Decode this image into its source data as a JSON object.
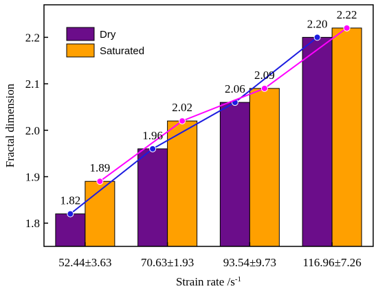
{
  "chart_data": {
    "type": "bar",
    "xlabel": "Strain rate /s",
    "xlabel_sup": "-1",
    "ylabel": "Fractal dimension",
    "categories": [
      "52.44±3.63",
      "70.63±1.93",
      "93.54±9.73",
      "116.96±7.26"
    ],
    "ylim": [
      1.75,
      2.27
    ],
    "yticks": [
      "1.8",
      "1.9",
      "2.0",
      "2.1",
      "2.2"
    ],
    "ytick_values": [
      1.8,
      1.9,
      2.0,
      2.1,
      2.2
    ],
    "legend_position": "top-left",
    "grid": false,
    "series": [
      {
        "name": "Dry",
        "values": [
          1.82,
          1.96,
          2.06,
          2.2
        ],
        "labels": [
          "1.82",
          "1.96",
          "2.06",
          "2.20"
        ],
        "bar_color": "#6b0d8a",
        "line_color": "#1c1ce0"
      },
      {
        "name": "Saturated",
        "values": [
          1.89,
          2.02,
          2.09,
          2.22
        ],
        "labels": [
          "1.89",
          "2.02",
          "2.09",
          "2.22"
        ],
        "bar_color": "#ffa000",
        "line_color": "#ff00ff"
      }
    ]
  }
}
